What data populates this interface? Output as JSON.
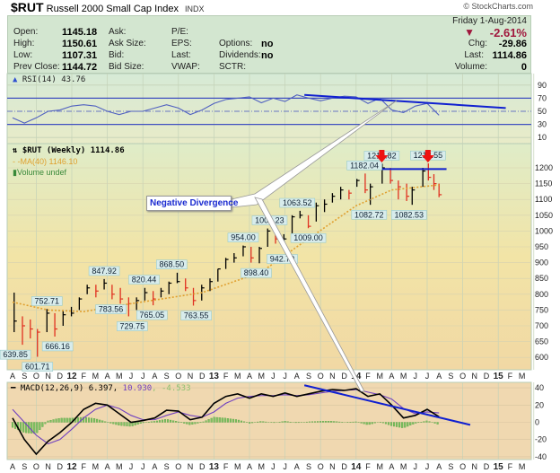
{
  "header": {
    "symbol": "$RUT",
    "name": "Russell 2000 Small Cap Index",
    "exchange": "INDX",
    "brand": "© StockCharts.com",
    "date": "Friday  1-Aug-2014",
    "pct_change": "-2.61%",
    "chg_label": "Chg:",
    "chg": "-29.86",
    "last_label": "Last:",
    "last": "1114.86",
    "volume_label": "Volume:",
    "volume": "0"
  },
  "quote": {
    "open_label": "Open:",
    "open": "1145.18",
    "high_label": "High:",
    "high": "1150.61",
    "low_label": "Low:",
    "low": "1107.31",
    "prev_label": "Prev Close:",
    "prev": "1144.72",
    "ask_label": "Ask:",
    "asksize_label": "Ask Size:",
    "bid_label": "Bid:",
    "bidsize_label": "Bid Size:",
    "pe_label": "P/E:",
    "eps_label": "EPS:",
    "last_label": "Last:",
    "vwap_label": "VWAP:",
    "options_label": "Options:",
    "options": "no",
    "dividends_label": "Dividends:",
    "dividends": "no",
    "sctr_label": "SCTR:"
  },
  "colors": {
    "up": "#000000",
    "down": "#e03020",
    "ma": "#e0a030",
    "rsi": "#5060c0",
    "macd": "#000000",
    "signal": "#7040c0",
    "hist": "#7cc060",
    "trend": "#1020d0",
    "arrow": "#ee1111",
    "neg": "#a0163c"
  },
  "annotation": {
    "text": "Negative Divergence"
  },
  "chart_data": [
    {
      "panel": "price",
      "type": "bar",
      "style": "ohlc",
      "legend": {
        "main": "$RUT (Weekly) 1114.86",
        "ma": "MA(40) 1146.10",
        "volume": "Volume undef"
      },
      "ylim": [
        575,
        1250
      ],
      "yticks": [
        "1200",
        "1150",
        "1100",
        "1050",
        "1000",
        "950",
        "900",
        "850",
        "800",
        "750",
        "700",
        "650",
        "600"
      ],
      "bars_columns": [
        "date",
        "high",
        "low",
        "close"
      ],
      "bars": [
        [
          "2011-08-05",
          805,
          680,
          715
        ],
        [
          "2011-08-26",
          730,
          640,
          700
        ],
        [
          "2011-09-16",
          720,
          660,
          690
        ],
        [
          "2011-10-04",
          690,
          602,
          680
        ],
        [
          "2011-10-28",
          753,
          680,
          740
        ],
        [
          "2011-11-18",
          740,
          666,
          690
        ],
        [
          "2011-12-09",
          750,
          700,
          735
        ],
        [
          "2011-12-30",
          760,
          730,
          740
        ],
        [
          "2012-01-20",
          790,
          750,
          785
        ],
        [
          "2012-02-10",
          830,
          800,
          820
        ],
        [
          "2012-03-02",
          830,
          790,
          810
        ],
        [
          "2012-03-23",
          848,
          815,
          835
        ],
        [
          "2012-04-13",
          830,
          784,
          800
        ],
        [
          "2012-05-04",
          820,
          770,
          785
        ],
        [
          "2012-05-25",
          790,
          730,
          770
        ],
        [
          "2012-06-15",
          790,
          750,
          780
        ],
        [
          "2012-07-06",
          820,
          780,
          805
        ],
        [
          "2012-07-27",
          810,
          765,
          785
        ],
        [
          "2012-08-17",
          820,
          790,
          810
        ],
        [
          "2012-09-07",
          840,
          800,
          835
        ],
        [
          "2012-09-28",
          868,
          835,
          840
        ],
        [
          "2012-10-19",
          850,
          810,
          820
        ],
        [
          "2012-11-09",
          820,
          764,
          780
        ],
        [
          "2012-11-30",
          830,
          780,
          820
        ],
        [
          "2012-12-21",
          850,
          810,
          840
        ],
        [
          "2013-01-11",
          880,
          840,
          880
        ],
        [
          "2013-02-01",
          915,
          880,
          910
        ],
        [
          "2013-02-22",
          930,
          900,
          915
        ],
        [
          "2013-03-15",
          954,
          920,
          950
        ],
        [
          "2013-04-05",
          950,
          900,
          915
        ],
        [
          "2013-04-26",
          950,
          898,
          945
        ],
        [
          "2013-05-17",
          1008,
          950,
          1000
        ],
        [
          "2013-06-07",
          1000,
          960,
          975
        ],
        [
          "2013-06-28",
          990,
          943,
          975
        ],
        [
          "2013-07-19",
          1050,
          985,
          1045
        ],
        [
          "2013-08-09",
          1064,
          1040,
          1050
        ],
        [
          "2013-08-30",
          1050,
          1009,
          1015
        ],
        [
          "2013-09-20",
          1090,
          1030,
          1080
        ],
        [
          "2013-10-11",
          1100,
          1060,
          1085
        ],
        [
          "2013-11-01",
          1120,
          1090,
          1110
        ],
        [
          "2013-11-22",
          1140,
          1100,
          1130
        ],
        [
          "2013-12-13",
          1130,
          1100,
          1120
        ],
        [
          "2014-01-03",
          1165,
          1140,
          1160
        ],
        [
          "2014-01-24",
          1182,
          1120,
          1130
        ],
        [
          "2014-02-07",
          1150,
          1083,
          1140
        ],
        [
          "2014-03-07",
          1213,
          1150,
          1200
        ],
        [
          "2014-03-28",
          1200,
          1150,
          1160
        ],
        [
          "2014-04-18",
          1160,
          1100,
          1140
        ],
        [
          "2014-05-09",
          1150,
          1095,
          1110
        ],
        [
          "2014-05-23",
          1140,
          1083,
          1130
        ],
        [
          "2014-06-20",
          1200,
          1140,
          1190
        ],
        [
          "2014-07-04",
          1214,
          1160,
          1170
        ],
        [
          "2014-07-18",
          1180,
          1130,
          1150
        ],
        [
          "2014-08-01",
          1150,
          1107,
          1115
        ]
      ],
      "ma40": [
        [
          "2011-08-01",
          775
        ],
        [
          "2011-11-01",
          750
        ],
        [
          "2012-02-01",
          745
        ],
        [
          "2012-06-01",
          770
        ],
        [
          "2012-12-01",
          805
        ],
        [
          "2013-05-01",
          870
        ],
        [
          "2013-08-01",
          950
        ],
        [
          "2014-01-01",
          1080
        ],
        [
          "2014-04-01",
          1130
        ],
        [
          "2014-08-01",
          1146
        ]
      ],
      "price_labels": [
        {
          "date": "2011-08-08",
          "text": "639.85",
          "pos": "below",
          "value": 639.85
        },
        {
          "date": "2011-10-04",
          "text": "601.71",
          "pos": "below",
          "value": 601.71
        },
        {
          "date": "2011-10-28",
          "text": "752.71",
          "pos": "above",
          "value": 752.71
        },
        {
          "date": "2011-11-25",
          "text": "666.16",
          "pos": "below",
          "value": 666.16
        },
        {
          "date": "2012-03-23",
          "text": "847.92",
          "pos": "above",
          "value": 847.92
        },
        {
          "date": "2012-04-10",
          "text": "783.56",
          "pos": "below",
          "value": 783.56
        },
        {
          "date": "2012-06-04",
          "text": "729.75",
          "pos": "below",
          "value": 729.75
        },
        {
          "date": "2012-07-04",
          "text": "820.44",
          "pos": "above",
          "value": 820.44
        },
        {
          "date": "2012-07-24",
          "text": "765.05",
          "pos": "below",
          "value": 765.05
        },
        {
          "date": "2012-09-14",
          "text": "868.50",
          "pos": "above",
          "value": 868.5
        },
        {
          "date": "2012-11-16",
          "text": "763.55",
          "pos": "below",
          "value": 763.55
        },
        {
          "date": "2013-03-15",
          "text": "954.00",
          "pos": "above",
          "value": 954.0
        },
        {
          "date": "2013-04-18",
          "text": "898.40",
          "pos": "below",
          "value": 898.4
        },
        {
          "date": "2013-05-22",
          "text": "1008.23",
          "pos": "above",
          "value": 1008.23
        },
        {
          "date": "2013-06-24",
          "text": "942.79",
          "pos": "below",
          "value": 942.79
        },
        {
          "date": "2013-08-02",
          "text": "1063.52",
          "pos": "above",
          "value": 1063.52
        },
        {
          "date": "2013-08-30",
          "text": "1009.00",
          "pos": "below",
          "value": 1009.0
        },
        {
          "date": "2014-01-22",
          "text": "1182.04",
          "pos": "above",
          "value": 1182.04
        },
        {
          "date": "2014-02-04",
          "text": "1082.72",
          "pos": "below",
          "value": 1082.72
        },
        {
          "date": "2014-03-06",
          "text": "1212.82",
          "pos": "above",
          "value": 1212.82
        },
        {
          "date": "2014-05-15",
          "text": "1082.53",
          "pos": "below",
          "value": 1082.53
        },
        {
          "date": "2014-07-03",
          "text": "1213.55",
          "pos": "above",
          "value": 1213.55
        }
      ],
      "peak_arrows": [
        "2014-03-06",
        "2014-07-03"
      ],
      "resistance": {
        "value": 1213,
        "from": "2014-01-05",
        "to": "2014-08-20"
      }
    },
    {
      "panel": "rsi",
      "type": "line",
      "legend": "RSI(14) 43.76",
      "ylim": [
        0,
        100
      ],
      "yticks": [
        "90",
        "70",
        "50",
        "30",
        "10"
      ],
      "start": "2011-08",
      "monthly": [
        40,
        32,
        40,
        50,
        52,
        58,
        60,
        58,
        50,
        45,
        50,
        50,
        55,
        60,
        55,
        45,
        52,
        62,
        68,
        70,
        72,
        63,
        70,
        65,
        75,
        70,
        66,
        70,
        73,
        72,
        62,
        70,
        52,
        48,
        58,
        62,
        44
      ],
      "trendline": [
        [
          "2013-08-20",
          75
        ],
        [
          "2015-01-20",
          55
        ]
      ]
    },
    {
      "panel": "macd",
      "type": "line",
      "legend": {
        "name": "MACD(12,26,9)",
        "macd": "6.397,",
        "signal": "10.930",
        "hist": ", -4.533"
      },
      "ylim": [
        -45,
        45
      ],
      "yticks": [
        "40",
        "20",
        "0",
        "-20",
        "-40"
      ],
      "start": "2011-08",
      "macd": [
        5,
        -20,
        -37,
        -22,
        -12,
        0,
        15,
        22,
        20,
        10,
        0,
        2,
        5,
        14,
        13,
        3,
        6,
        22,
        30,
        33,
        28,
        33,
        30,
        34,
        30,
        33,
        36,
        38,
        37,
        39,
        30,
        33,
        20,
        5,
        8,
        15,
        6.4
      ],
      "signal": [
        15,
        0,
        -15,
        -25,
        -20,
        -8,
        5,
        15,
        20,
        16,
        8,
        3,
        3,
        8,
        12,
        8,
        6,
        12,
        22,
        28,
        30,
        31,
        31,
        32,
        31,
        32,
        34,
        36,
        37,
        38,
        35,
        32,
        27,
        16,
        10,
        12,
        10.9
      ],
      "trendline": [
        [
          "2013-08-20",
          43
        ],
        [
          "2014-10-20",
          -3
        ]
      ]
    }
  ],
  "xaxis": {
    "labels": [
      "A",
      "S",
      "O",
      "N",
      "D",
      "12",
      "F",
      "M",
      "A",
      "M",
      "J",
      "J",
      "A",
      "S",
      "O",
      "N",
      "D",
      "13",
      "F",
      "M",
      "A",
      "M",
      "J",
      "J",
      "A",
      "S",
      "O",
      "N",
      "D",
      "14",
      "F",
      "M",
      "A",
      "M",
      "J",
      "J",
      "A",
      "S",
      "O",
      "N",
      "D",
      "15",
      "F",
      "M"
    ]
  }
}
